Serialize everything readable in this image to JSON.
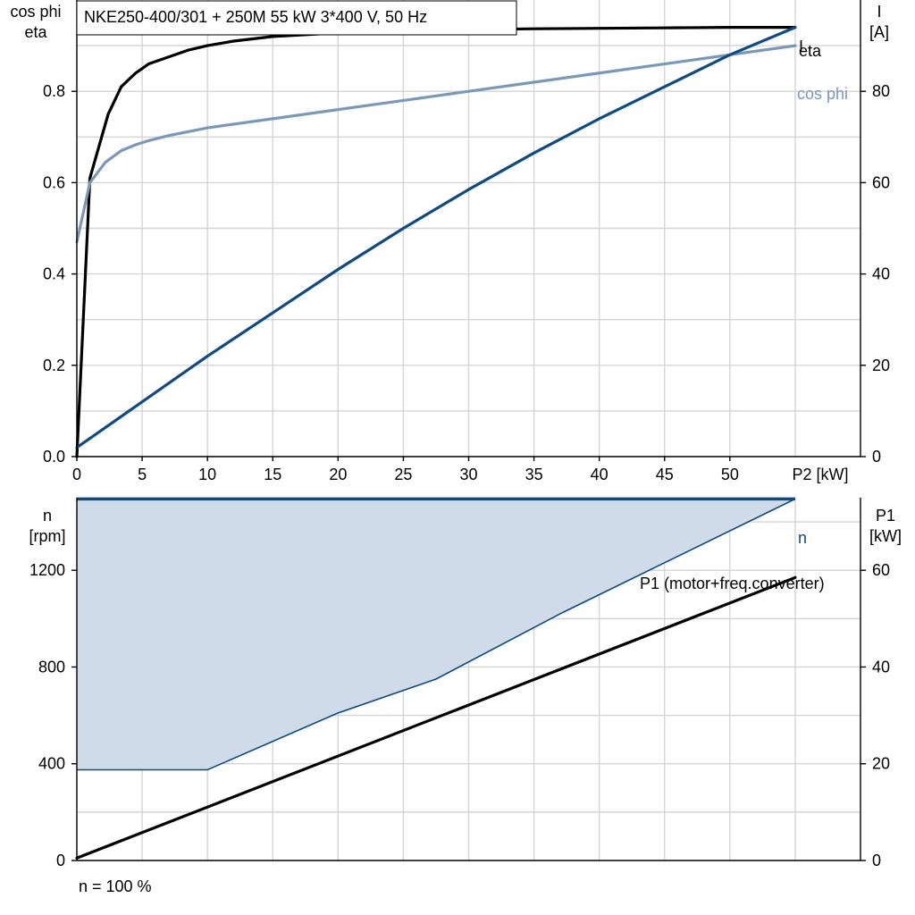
{
  "chart_data": [
    {
      "type": "line",
      "title": "NKE250-400/301 + 250M   55 kW   3*400 V, 50 Hz",
      "left_axis_label": [
        "cos phi",
        "eta"
      ],
      "right_axis_label": [
        "I",
        "[A]"
      ],
      "x_axis_label": "P2 [kW]",
      "x_ticks": [
        0,
        5,
        10,
        15,
        20,
        25,
        30,
        35,
        40,
        45,
        50
      ],
      "x_grid_step": 5,
      "xlim": [
        0,
        60
      ],
      "ylim_left": [
        0,
        1.0
      ],
      "left_ticks": [
        0.0,
        0.2,
        0.4,
        0.6,
        0.8
      ],
      "left_tick_labels": [
        "0.0",
        "0.2",
        "0.4",
        "0.6",
        "0.8"
      ],
      "left_grid_step": 0.1,
      "ylim_right": [
        0,
        100
      ],
      "right_ticks": [
        0,
        20,
        40,
        60,
        80
      ],
      "grid": true,
      "series": [
        {
          "name": "eta",
          "axis": "left",
          "color": "#000000",
          "x": [
            0,
            1,
            2.4,
            3.4,
            4.5,
            5.5,
            7,
            8.5,
            10,
            12,
            15,
            20,
            25,
            30,
            35,
            40,
            45,
            50,
            55
          ],
          "y": [
            0.0,
            0.61,
            0.75,
            0.81,
            0.84,
            0.86,
            0.875,
            0.89,
            0.9,
            0.91,
            0.92,
            0.928,
            0.932,
            0.935,
            0.937,
            0.938,
            0.939,
            0.94,
            0.94
          ]
        },
        {
          "name": "cos phi",
          "axis": "left",
          "color": "#7a99b8",
          "x": [
            0,
            1,
            2.2,
            3.4,
            4.5,
            5.5,
            7,
            10,
            15,
            20,
            25,
            30,
            35,
            40,
            45,
            50,
            55
          ],
          "y": [
            0.47,
            0.6,
            0.645,
            0.67,
            0.683,
            0.692,
            0.703,
            0.72,
            0.74,
            0.76,
            0.78,
            0.8,
            0.82,
            0.84,
            0.86,
            0.88,
            0.9
          ]
        },
        {
          "name": "I",
          "axis": "right",
          "color": "#0f4a80",
          "x": [
            0,
            5,
            10,
            15,
            20,
            25,
            30,
            35,
            40,
            45,
            50,
            55
          ],
          "y": [
            2,
            12,
            22,
            31.5,
            41,
            50,
            58.5,
            66.5,
            74,
            81,
            88,
            94
          ]
        }
      ]
    },
    {
      "type": "area",
      "left_axis_label": [
        "n",
        "[rpm]"
      ],
      "right_axis_label": [
        "P1",
        "[kW]"
      ],
      "xlim": [
        0,
        60
      ],
      "x_grid_step": 5,
      "ylim_left": [
        0,
        1500
      ],
      "left_ticks": [
        0,
        400,
        800,
        1200
      ],
      "left_grid_step": 200,
      "ylim_right": [
        0,
        75
      ],
      "right_ticks": [
        0,
        20,
        40,
        60
      ],
      "grid": true,
      "footnote": "n = 100 %",
      "operating_range": {
        "name": "n",
        "color": "#0f4a80",
        "fill": "#cfdbe8",
        "upper": {
          "x": [
            0,
            55
          ],
          "y": [
            1495,
            1495
          ]
        },
        "lower": {
          "x": [
            0,
            10,
            20,
            27.5,
            37,
            55
          ],
          "y": [
            375,
            375,
            610,
            750,
            1020,
            1495
          ]
        }
      },
      "series": [
        {
          "name": "P1 (motor+freq.converter)",
          "axis": "right",
          "color": "#000000",
          "x": [
            0,
            55
          ],
          "y": [
            0.5,
            58.5
          ]
        }
      ]
    }
  ]
}
